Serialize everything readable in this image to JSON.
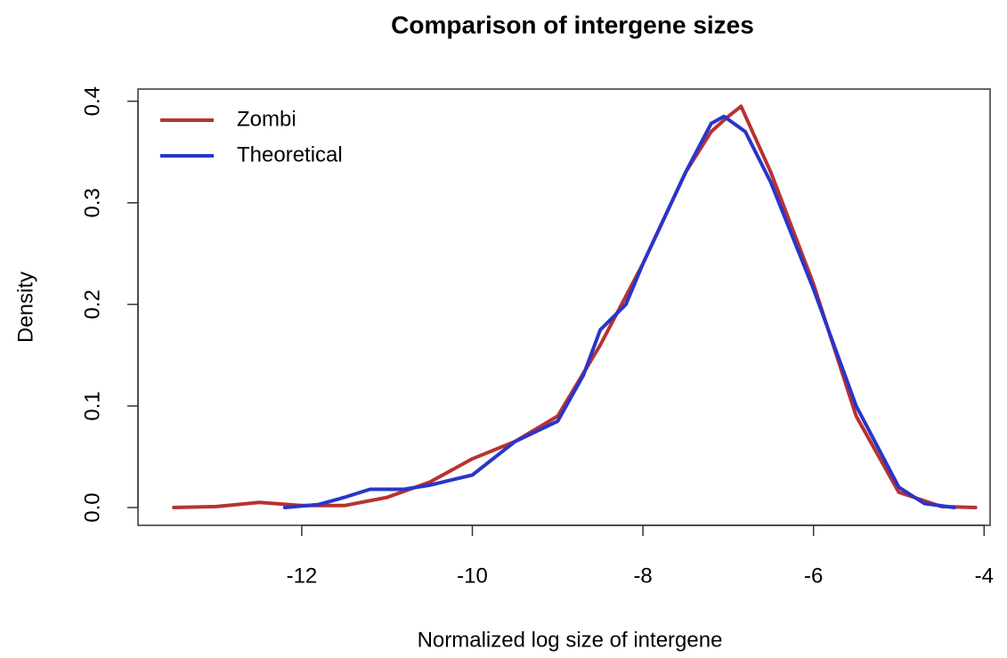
{
  "chart_data": {
    "type": "line",
    "title": "Comparison of intergene sizes",
    "x_label": "Normalized log size of intergene",
    "y_label": "Density",
    "xlim": [
      -13.92,
      -3.93
    ],
    "ylim": [
      -0.0175,
      0.412
    ],
    "xticks": [
      -12,
      -10,
      -8,
      -6,
      -4
    ],
    "yticks": [
      {
        "value": 0,
        "label": "0.0"
      },
      0.1,
      0.2,
      0.3,
      0.4
    ],
    "legend": "top-left",
    "series": [
      {
        "name": "Zombi",
        "color": "#b83232",
        "x": [
          -13.5,
          -13,
          -12.5,
          -12,
          -11.5,
          -11,
          -10.5,
          -10,
          -9.5,
          -9,
          -8.5,
          -8,
          -7.5,
          -7.2,
          -7,
          -6.85,
          -6.5,
          -6,
          -5.5,
          -5,
          -4.5,
          -4.1
        ],
        "values": [
          0.0,
          0.001,
          0.005,
          0.002,
          0.002,
          0.01,
          0.025,
          0.048,
          0.065,
          0.09,
          0.16,
          0.24,
          0.33,
          0.37,
          0.385,
          0.395,
          0.33,
          0.22,
          0.09,
          0.015,
          0.001,
          0.0
        ]
      },
      {
        "name": "Theoretical",
        "color": "#2a35c8",
        "x": [
          -12.2,
          -11.8,
          -11.5,
          -11.2,
          -10.8,
          -10.5,
          -10,
          -9.5,
          -9,
          -8.7,
          -8.5,
          -8.2,
          -8,
          -7.5,
          -7.2,
          -7.05,
          -6.8,
          -6.5,
          -6,
          -5.5,
          -5,
          -4.7,
          -4.35
        ],
        "values": [
          0.0,
          0.003,
          0.01,
          0.018,
          0.018,
          0.022,
          0.032,
          0.065,
          0.085,
          0.13,
          0.175,
          0.2,
          0.24,
          0.33,
          0.378,
          0.385,
          0.37,
          0.32,
          0.215,
          0.1,
          0.02,
          0.004,
          0.0
        ]
      }
    ]
  }
}
